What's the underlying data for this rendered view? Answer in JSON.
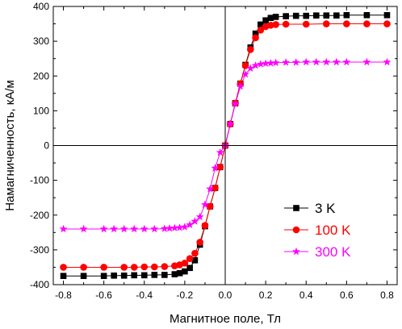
{
  "chart_data": {
    "type": "scatter",
    "xlabel": "Магнитное поле, Тл",
    "ylabel": "Намагниченность, кА/м",
    "xlim": [
      -0.85,
      0.85
    ],
    "ylim": [
      -400,
      400
    ],
    "x_ticks": [
      -0.8,
      -0.6,
      -0.4,
      -0.2,
      0.0,
      0.2,
      0.4,
      0.6,
      0.8
    ],
    "x_tick_labels": [
      "-0.8",
      "-0.6",
      "-0.4",
      "-0.2",
      "0.0",
      "0.2",
      "0.4",
      "0.6",
      "0.8"
    ],
    "y_ticks": [
      -400,
      -300,
      -200,
      -100,
      0,
      100,
      200,
      300,
      400
    ],
    "y_tick_labels": [
      "-400",
      "-300",
      "-200",
      "-100",
      "0",
      "100",
      "200",
      "300",
      "400"
    ],
    "grid": false,
    "zero_lines": true,
    "legend_position": "lower-right",
    "series": [
      {
        "name": "3 K",
        "color": "#000000",
        "marker": "square",
        "points": [
          [
            -0.8,
            -375
          ],
          [
            -0.7,
            -375
          ],
          [
            -0.6,
            -375
          ],
          [
            -0.55,
            -374
          ],
          [
            -0.5,
            -374
          ],
          [
            -0.45,
            -373
          ],
          [
            -0.4,
            -373
          ],
          [
            -0.35,
            -372
          ],
          [
            -0.3,
            -372
          ],
          [
            -0.25,
            -370
          ],
          [
            -0.225,
            -367
          ],
          [
            -0.2,
            -362
          ],
          [
            -0.175,
            -352
          ],
          [
            -0.15,
            -330
          ],
          [
            -0.125,
            -285
          ],
          [
            -0.1,
            -232
          ],
          [
            -0.075,
            -175
          ],
          [
            -0.05,
            -122
          ],
          [
            -0.025,
            -62
          ],
          [
            0.0,
            0
          ],
          [
            0.025,
            62
          ],
          [
            0.05,
            122
          ],
          [
            0.075,
            178
          ],
          [
            0.1,
            232
          ],
          [
            0.125,
            282
          ],
          [
            0.15,
            322
          ],
          [
            0.175,
            348
          ],
          [
            0.2,
            360
          ],
          [
            0.225,
            367
          ],
          [
            0.25,
            370
          ],
          [
            0.3,
            372
          ],
          [
            0.35,
            373
          ],
          [
            0.4,
            373
          ],
          [
            0.45,
            374
          ],
          [
            0.5,
            374
          ],
          [
            0.55,
            374
          ],
          [
            0.6,
            375
          ],
          [
            0.7,
            375
          ],
          [
            0.8,
            375
          ]
        ]
      },
      {
        "name": "100 K",
        "color": "#ff0000",
        "marker": "circle",
        "points": [
          [
            -0.8,
            -350
          ],
          [
            -0.7,
            -350
          ],
          [
            -0.6,
            -350
          ],
          [
            -0.5,
            -350
          ],
          [
            -0.45,
            -350
          ],
          [
            -0.4,
            -349
          ],
          [
            -0.35,
            -349
          ],
          [
            -0.3,
            -348
          ],
          [
            -0.25,
            -346
          ],
          [
            -0.225,
            -343
          ],
          [
            -0.2,
            -338
          ],
          [
            -0.175,
            -325
          ],
          [
            -0.15,
            -310
          ],
          [
            -0.125,
            -278
          ],
          [
            -0.1,
            -230
          ],
          [
            -0.075,
            -175
          ],
          [
            -0.05,
            -122
          ],
          [
            -0.025,
            -62
          ],
          [
            0.0,
            0
          ],
          [
            0.025,
            62
          ],
          [
            0.05,
            122
          ],
          [
            0.075,
            178
          ],
          [
            0.1,
            230
          ],
          [
            0.125,
            276
          ],
          [
            0.15,
            310
          ],
          [
            0.175,
            332
          ],
          [
            0.2,
            342
          ],
          [
            0.225,
            346
          ],
          [
            0.25,
            348
          ],
          [
            0.3,
            349
          ],
          [
            0.4,
            349
          ],
          [
            0.5,
            350
          ],
          [
            0.6,
            350
          ],
          [
            0.7,
            350
          ],
          [
            0.8,
            350
          ]
        ]
      },
      {
        "name": "300 K",
        "color": "#ff00ff",
        "marker": "star",
        "points": [
          [
            -0.8,
            -240
          ],
          [
            -0.7,
            -240
          ],
          [
            -0.6,
            -240
          ],
          [
            -0.55,
            -240
          ],
          [
            -0.5,
            -240
          ],
          [
            -0.45,
            -240
          ],
          [
            -0.4,
            -240
          ],
          [
            -0.35,
            -240
          ],
          [
            -0.3,
            -239
          ],
          [
            -0.275,
            -238
          ],
          [
            -0.25,
            -237
          ],
          [
            -0.225,
            -236
          ],
          [
            -0.2,
            -234
          ],
          [
            -0.175,
            -228
          ],
          [
            -0.15,
            -218
          ],
          [
            -0.125,
            -205
          ],
          [
            -0.1,
            -170
          ],
          [
            -0.075,
            -125
          ],
          [
            -0.05,
            -65
          ],
          [
            -0.025,
            -20
          ],
          [
            0.0,
            0
          ],
          [
            0.025,
            62
          ],
          [
            0.05,
            120
          ],
          [
            0.075,
            170
          ],
          [
            0.1,
            205
          ],
          [
            0.125,
            222
          ],
          [
            0.15,
            230
          ],
          [
            0.175,
            234
          ],
          [
            0.2,
            236
          ],
          [
            0.225,
            237
          ],
          [
            0.25,
            238
          ],
          [
            0.3,
            239
          ],
          [
            0.35,
            239
          ],
          [
            0.4,
            240
          ],
          [
            0.45,
            240
          ],
          [
            0.5,
            240
          ],
          [
            0.55,
            240
          ],
          [
            0.6,
            240
          ],
          [
            0.7,
            240
          ],
          [
            0.8,
            240
          ]
        ]
      }
    ]
  }
}
